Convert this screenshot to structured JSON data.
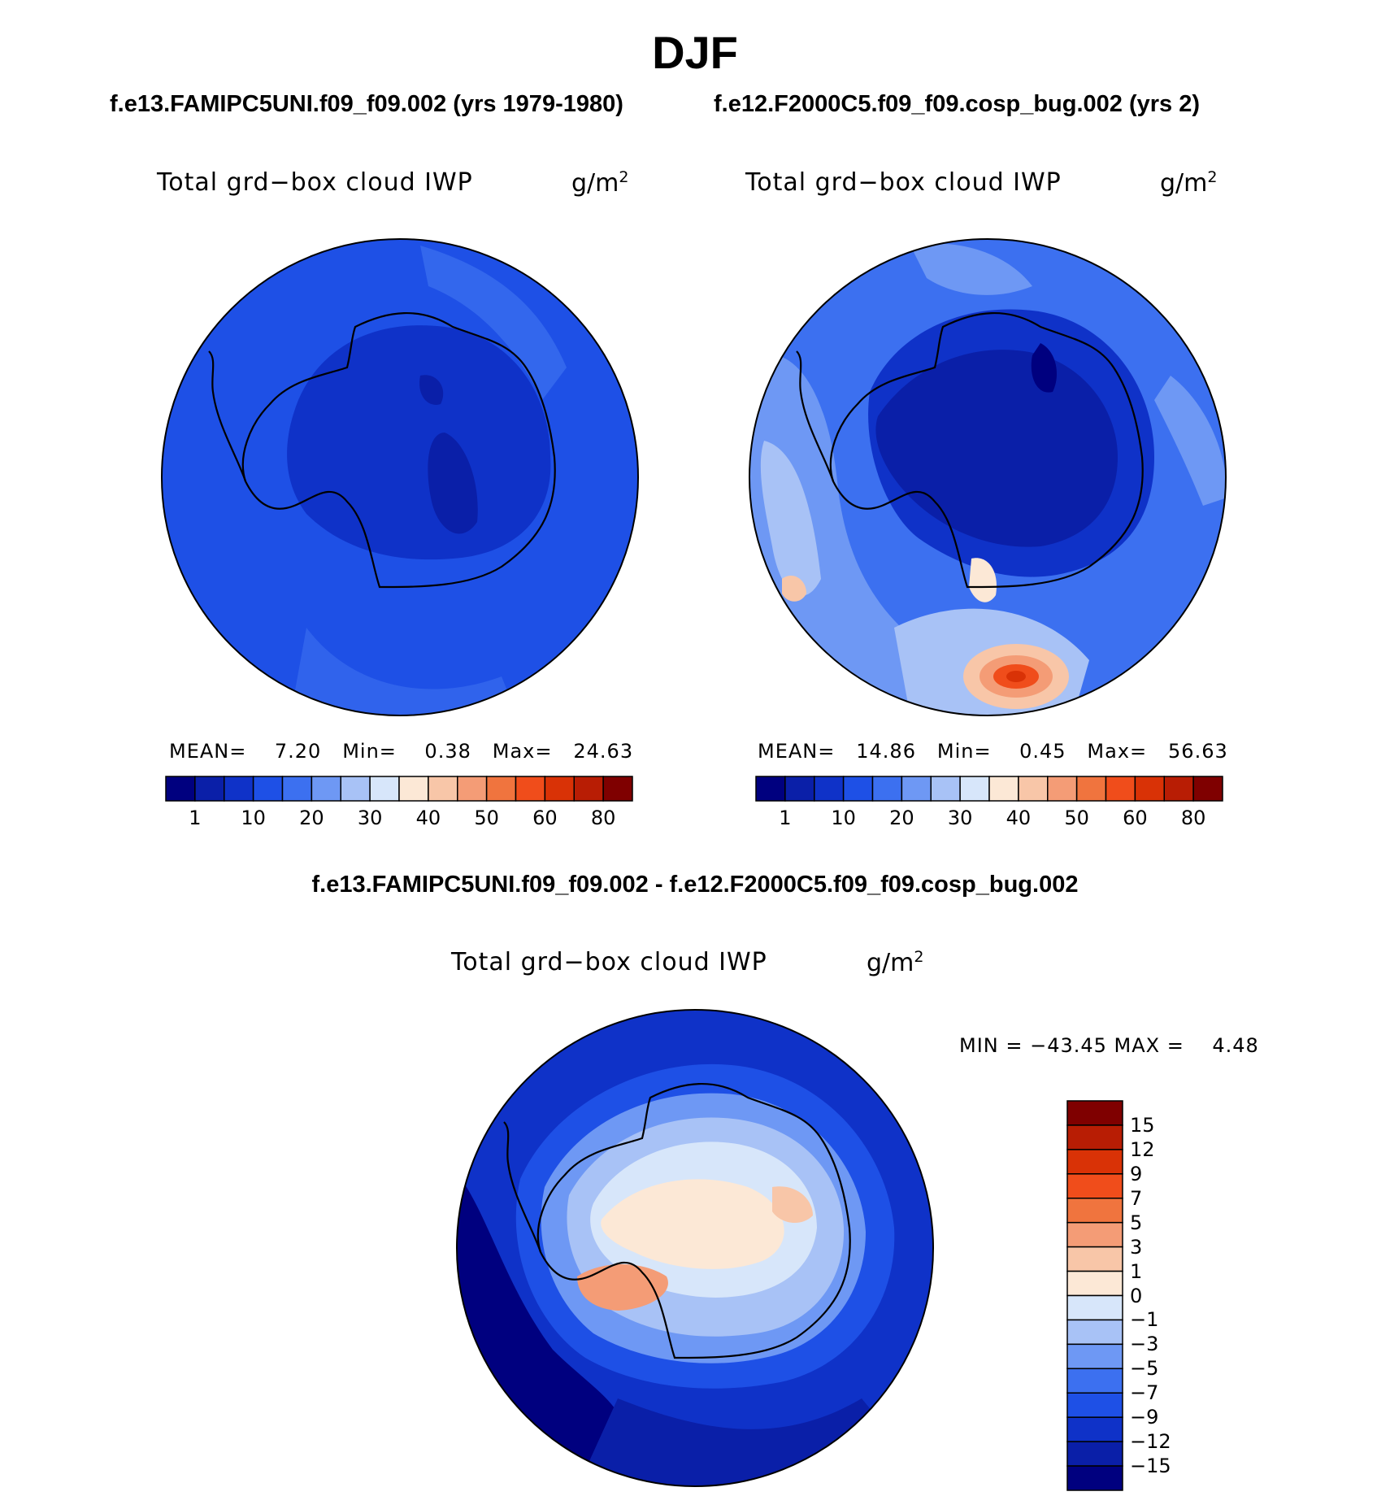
{
  "title": "DJF",
  "header": {
    "case1": "f.e13.FAMIPC5UNI.f09_f09.002 (yrs 1979-1980)",
    "case2": "f.e12.F2000C5.f09_f09.cosp_bug.002 (yrs 2)",
    "diff": "f.e13.FAMIPC5UNI.f09_f09.002 - f.e12.F2000C5.f09_f09.cosp_bug.002"
  },
  "colors": {
    "seq": [
      "#00007f",
      "#0a1fa8",
      "#0f32c8",
      "#1e50e6",
      "#3c70f0",
      "#6e98f4",
      "#a8c2f6",
      "#d7e6fa",
      "#fce8d6",
      "#f8c6a8",
      "#f49c76",
      "#f0743e",
      "#f04d1b",
      "#d93206",
      "#b81d04",
      "#7f0000"
    ],
    "div": [
      "#00007f",
      "#0a1fa8",
      "#0f32c8",
      "#1e50e6",
      "#3c70f0",
      "#6e98f4",
      "#a8c2f6",
      "#d7e6fa",
      "#fce8d6",
      "#f8c6a8",
      "#f49c76",
      "#f0743e",
      "#f04d1b",
      "#d93206",
      "#b81d04",
      "#7f0000"
    ]
  },
  "panels": [
    {
      "variable": "Total grd−box cloud IWP",
      "units": "g/m",
      "units_exp": "2",
      "stats": {
        "mean_label": "MEAN=",
        "mean": "7.20",
        "min_label": "Min=",
        "min": "0.38",
        "max_label": "Max=",
        "max": "24.63"
      }
    },
    {
      "variable": "Total grd−box cloud IWP",
      "units": "g/m",
      "units_exp": "2",
      "stats": {
        "mean_label": "MEAN=",
        "mean": "14.86",
        "min_label": "Min=",
        "min": "0.45",
        "max_label": "Max=",
        "max": "56.63"
      }
    },
    {
      "variable": "Total grd−box cloud IWP",
      "units": "g/m",
      "units_exp": "2",
      "stats_line": "MIN = −43.45 MAX =    4.48"
    }
  ],
  "chart_data": [
    {
      "type": "heatmap",
      "projection": "south-polar-stereographic",
      "title": "Total grd−box cloud IWP",
      "units": "g/m2",
      "case": "f.e13.FAMIPC5UNI.f09_f09.002 (yrs 1979-1980)",
      "mean": 7.2,
      "min": 0.38,
      "max": 24.63,
      "colorbar_ticks": [
        "1",
        "10",
        "20",
        "30",
        "40",
        "50",
        "60",
        "80"
      ],
      "colorbar_bins": 16,
      "colorbar_orientation": "horizontal"
    },
    {
      "type": "heatmap",
      "projection": "south-polar-stereographic",
      "title": "Total grd−box cloud IWP",
      "units": "g/m2",
      "case": "f.e12.F2000C5.f09_f09.cosp_bug.002 (yrs 2)",
      "mean": 14.86,
      "min": 0.45,
      "max": 56.63,
      "colorbar_ticks": [
        "1",
        "10",
        "20",
        "30",
        "40",
        "50",
        "60",
        "80"
      ],
      "colorbar_bins": 16,
      "colorbar_orientation": "horizontal"
    },
    {
      "type": "heatmap",
      "projection": "south-polar-stereographic",
      "title": "Total grd−box cloud IWP",
      "units": "g/m2",
      "case": "f.e13.FAMIPC5UNI.f09_f09.002 - f.e12.F2000C5.f09_f09.cosp_bug.002",
      "min": -43.45,
      "max": 4.48,
      "colorbar_ticks": [
        "15",
        "12",
        "9",
        "7",
        "5",
        "3",
        "1",
        "0",
        "−1",
        "−3",
        "−5",
        "−7",
        "−9",
        "−12",
        "−15"
      ],
      "colorbar_bins": 16,
      "colorbar_orientation": "vertical"
    }
  ]
}
